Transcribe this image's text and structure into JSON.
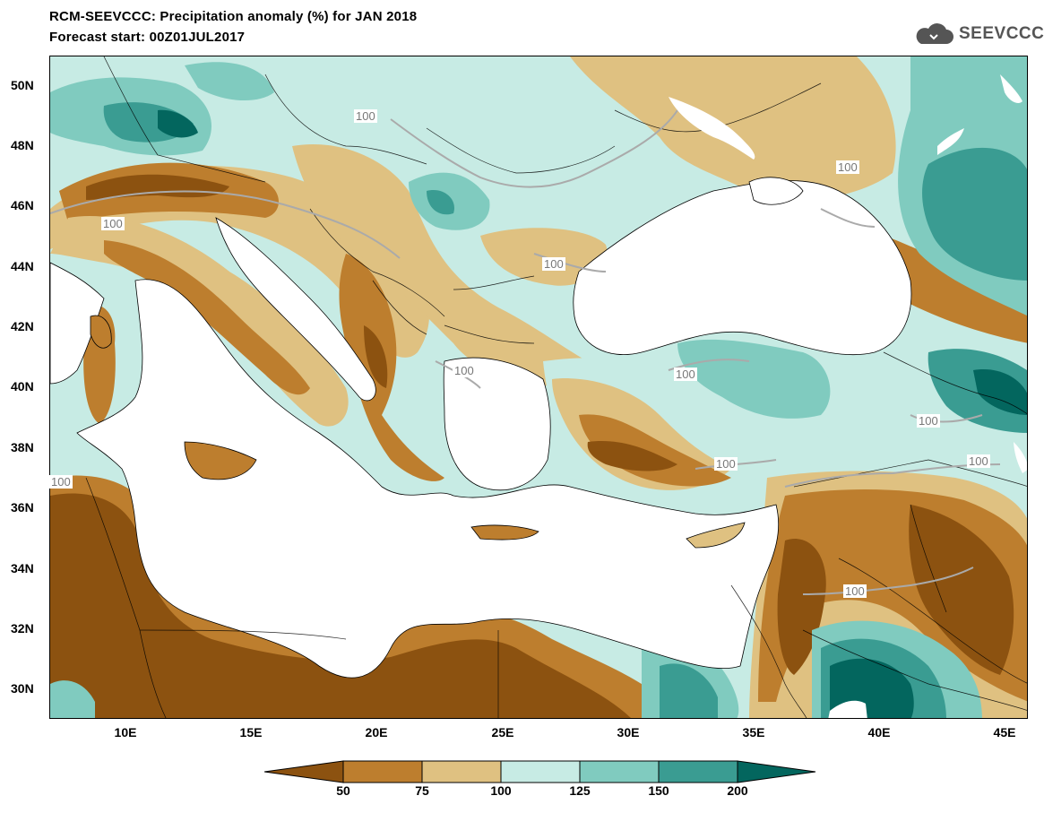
{
  "header": {
    "title_line1": "RCM-SEEVCCC: Precipitation anomaly (%) for JAN 2018",
    "title_line2": "Forecast start: 00Z01JUL2017"
  },
  "logo": {
    "text": "SEEVCCC",
    "icon": "cloud-icon",
    "color": "#555555"
  },
  "axes": {
    "lat_labels": [
      "50N",
      "48N",
      "46N",
      "44N",
      "42N",
      "40N",
      "38N",
      "36N",
      "34N",
      "32N",
      "30N"
    ],
    "lon_labels": [
      "10E",
      "15E",
      "20E",
      "25E",
      "30E",
      "35E",
      "40E",
      "45E"
    ]
  },
  "contour_labels": [
    "100",
    "100",
    "100",
    "100",
    "100",
    "100",
    "100",
    "100",
    "100",
    "100",
    "100"
  ],
  "colorbar": {
    "tick_labels": [
      "50",
      "75",
      "100",
      "125",
      "150",
      "200"
    ],
    "colors": [
      "#8c5210",
      "#bd7e2e",
      "#dfc181",
      "#c7ebe4",
      "#80cbbf",
      "#3a9c92",
      "#03665e"
    ]
  },
  "palette": {
    "very_dry": "#8c5210",
    "dry": "#bd7e2e",
    "slightly_dry": "#dfc181",
    "slightly_wet": "#c7ebe4",
    "wet": "#80cbbf",
    "very_wet": "#3a9c92",
    "extreme_wet": "#03665e",
    "sea": "#ffffff"
  }
}
